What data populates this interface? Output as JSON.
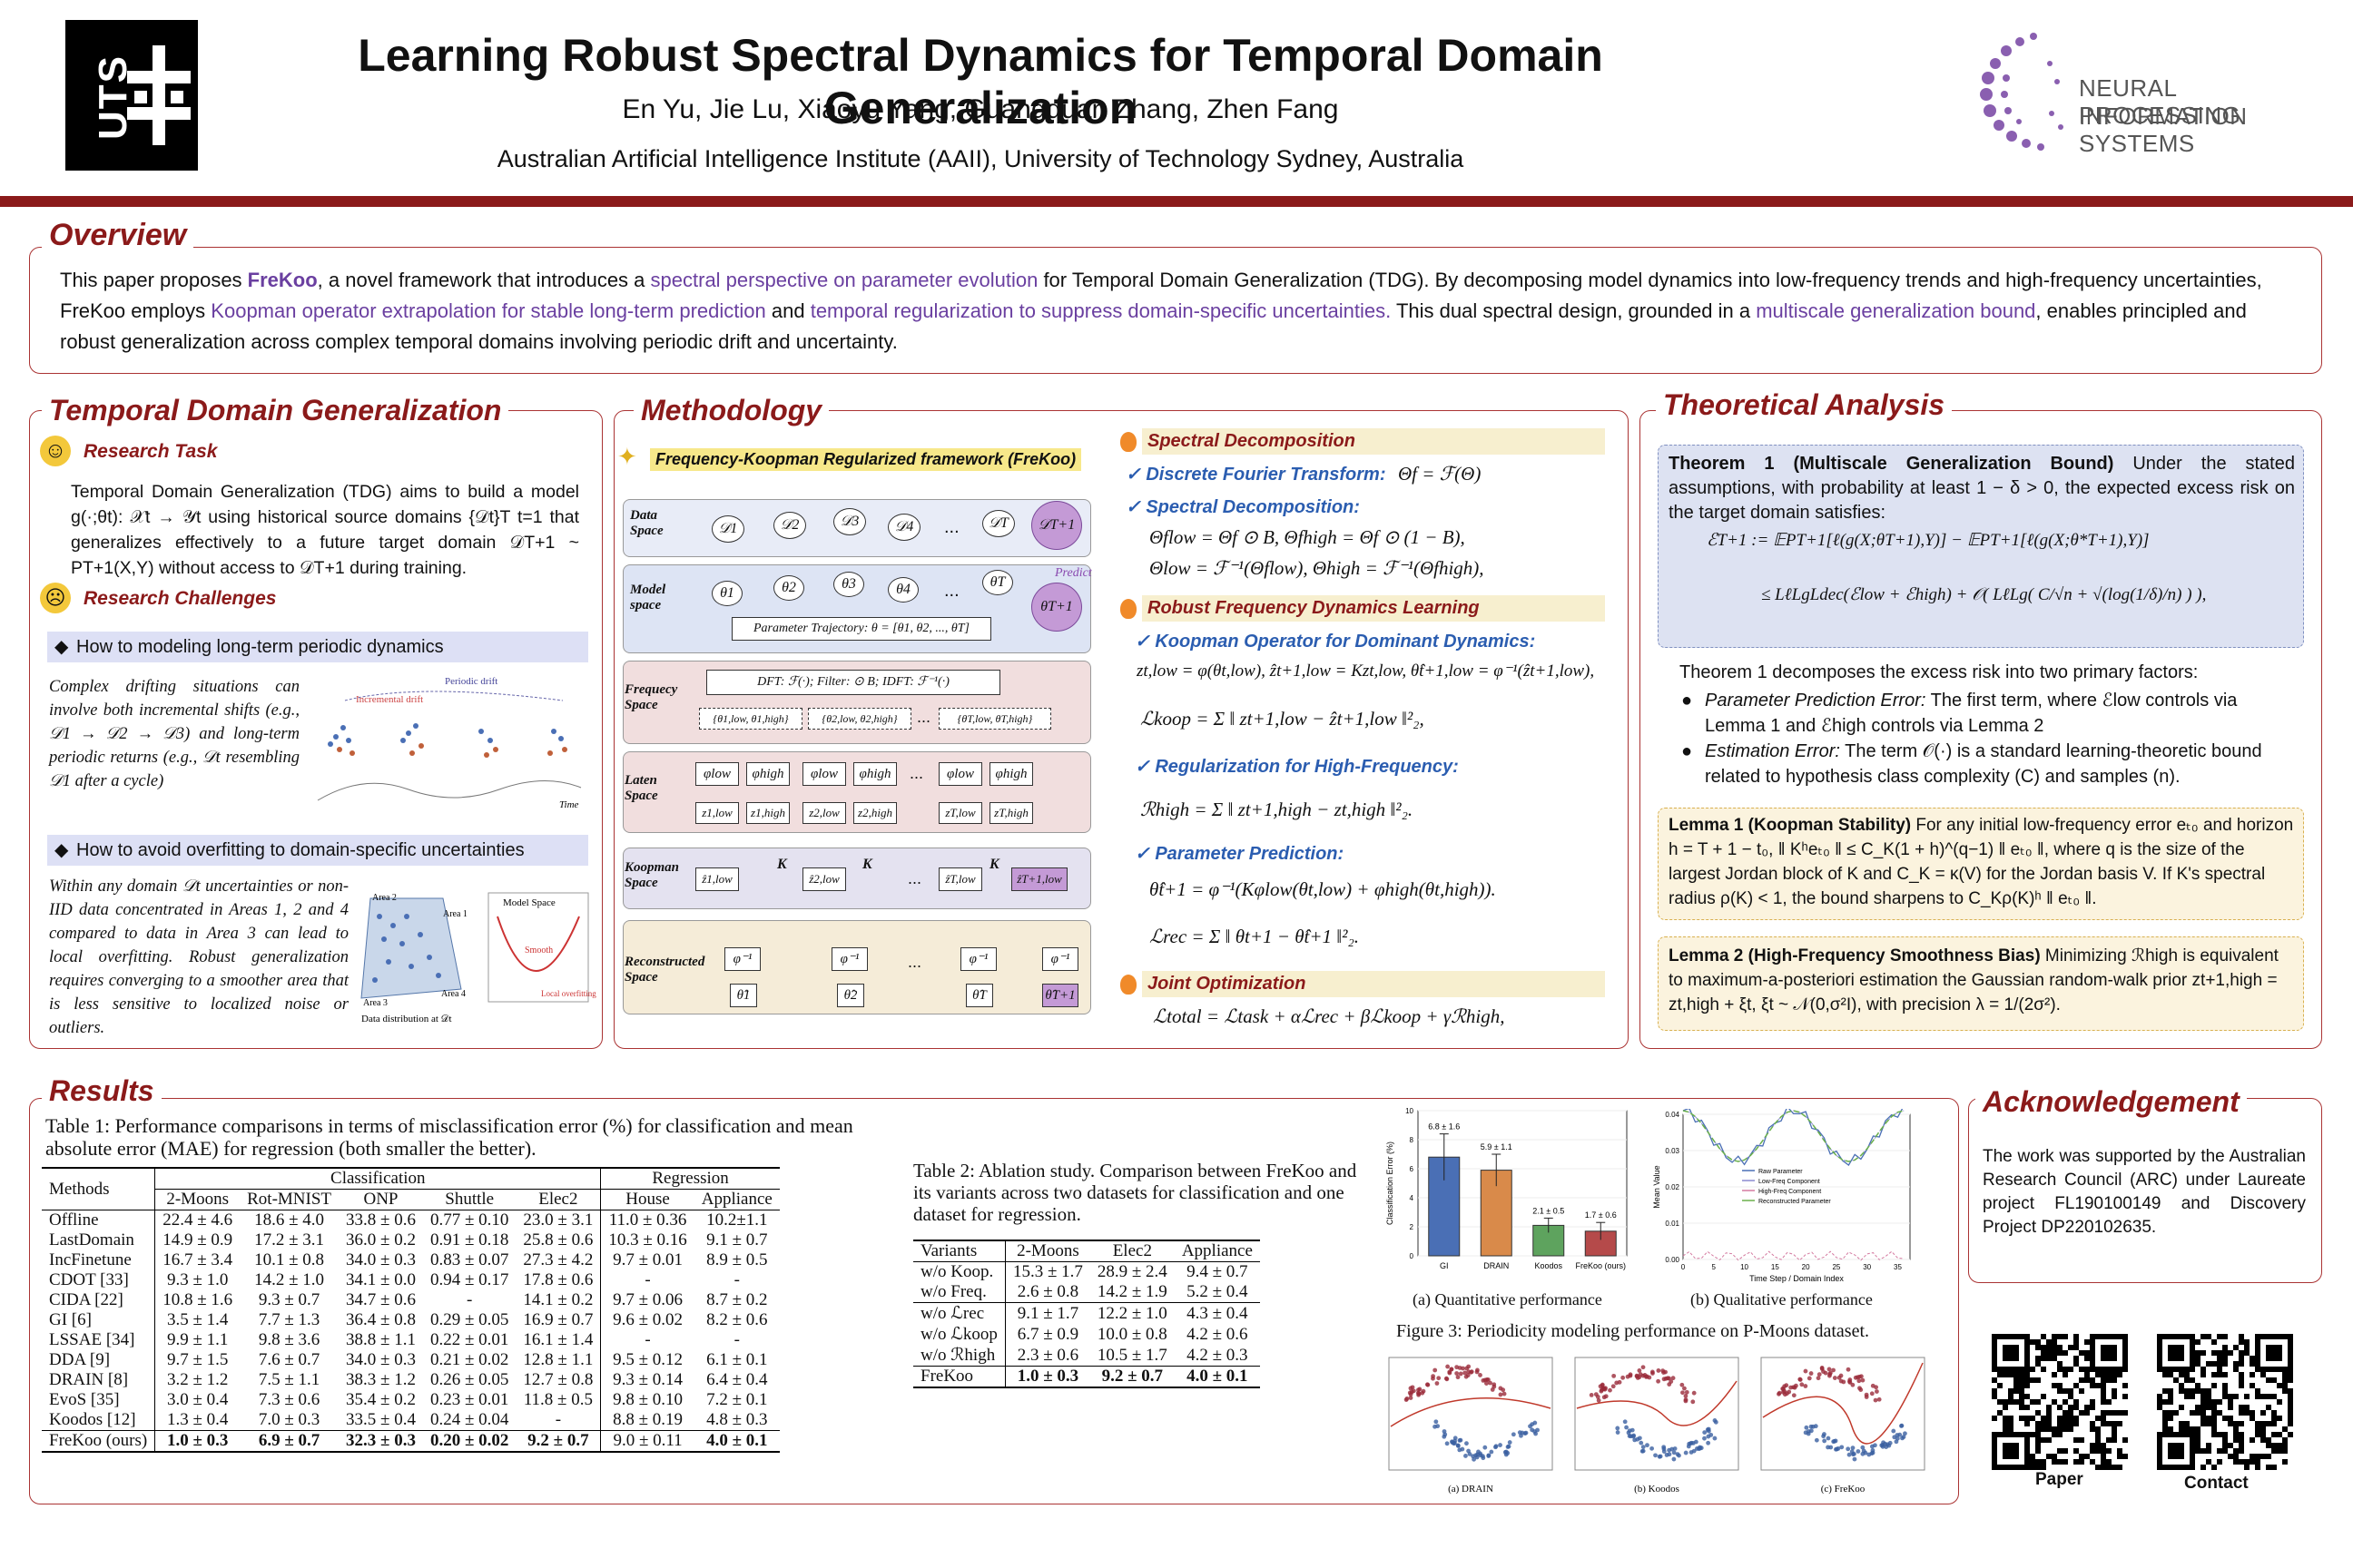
{
  "header": {
    "logo_left": "UTS",
    "title": "Learning Robust Spectral Dynamics for Temporal Domain Generalization",
    "authors": "En Yu, Jie Lu, Xiaoyu Yang, Guangquan Zhang, Zhen Fang",
    "affiliation": "Australian Artificial Intelligence Institute (AAII), University of Technology Sydney, Australia",
    "logo_right_line1": "NEURAL INFORMATION",
    "logo_right_line2": "PROCESSING SYSTEMS"
  },
  "overview": {
    "title": "Overview",
    "p1": "This paper proposes ",
    "freekoo": "FreKoo",
    "p2": ", a novel framework that introduces a ",
    "hl1": "spectral perspective on parameter evolution",
    "p3": " for Temporal Domain Generalization (TDG). By decomposing model dynamics into low-frequency trends and high-frequency uncertainties, FreKoo employs ",
    "hl2": "Koopman operator extrapolation for stable long-term prediction",
    "p4": " and ",
    "hl3": "temporal regularization to suppress domain-specific uncertainties.",
    "p5": " This dual spectral design, grounded in a ",
    "hl4": "multiscale generalization bound",
    "p6": ", enables principled and robust generalization across complex temporal domains involving periodic drift and uncertainty."
  },
  "tdg": {
    "title": "Temporal Domain Generalization",
    "task_heading": "Research Task",
    "task_text": "Temporal Domain Generalization (TDG) aims to build a model g(·;θt): 𝒳t → 𝒴t using historical source domains {𝒟t}T t=1 that generalizes effectively to a future target domain 𝒟T+1 ~ PT+1(X,Y) without access to 𝒟T+1 during training.",
    "challenges_heading": "Research Challenges",
    "c1_title": "How to modeling long-term periodic dynamics",
    "c1_text": "Complex drifting situations can involve both incremental shifts (e.g., 𝒟1 → 𝒟2 → 𝒟3) and long-term periodic returns (e.g., 𝒟t resembling 𝒟1 after a cycle)",
    "c1_fig_label1": "Incremental drift",
    "c1_fig_label2": "Periodic drift",
    "c1_fig_time": "Time",
    "c2_title": "How to avoid overfitting to domain-specific uncertainties",
    "c2_text": "Within any domain 𝒟t uncertainties or non-IID data concentrated in Areas 1, 2 and 4 compared to data in Area 3 can lead to local overfitting. Robust generalization requires converging to a smoother area that is less sensitive to localized noise or outliers.",
    "c2_fig_area1": "Area 1",
    "c2_fig_area2": "Area 2",
    "c2_fig_area3": "Area 3",
    "c2_fig_area4": "Area 4",
    "c2_fig_model": "Model Space",
    "c2_fig_smooth": "Smooth",
    "c2_fig_local": "Local overfitting",
    "c2_fig_dist": "Data distribution at 𝒟t"
  },
  "method": {
    "title": "Methodology",
    "fig_caption": "Frequency-Koopman Regularized framework (FreKoo)",
    "rows": [
      "Data Space",
      "Model space",
      "Frequecy Space",
      "Laten Space",
      "Koopman Space",
      "Reconstructed Space"
    ],
    "param_traj": "Parameter Trajectory: θ = [θ1, θ2, ..., θT]",
    "dft": "DFT: ℱ(·);  Filter: ⊙ B;  IDFT: ℱ⁻¹(·)",
    "predict": "Predict",
    "freq_boxes": [
      "{θ1,low, θ1,high}",
      "{θ2,low, θ2,high}",
      "{θT,low, θT,high}"
    ],
    "data_nodes": [
      "𝒟1",
      "𝒟2",
      "𝒟3",
      "𝒟4",
      "𝒟T",
      "𝒟T+1"
    ],
    "model_nodes": [
      "θ1",
      "θ2",
      "θ3",
      "θ4",
      "θT",
      "θT+1"
    ],
    "latent_phi": [
      "φlow",
      "φhigh",
      "φlow",
      "φhigh",
      "φlow",
      "φhigh"
    ],
    "latent_z": [
      "z1,low",
      "z1,high",
      "z2,low",
      "z2,high",
      "zT,low",
      "zT,high"
    ],
    "koop_z": [
      "ẑ1,low",
      "ẑ2,low",
      "ẑT,low",
      "ẑT+1,low"
    ],
    "koop_k": "K",
    "recon_phi": "φ⁻¹",
    "recon_theta": [
      "θ̂1",
      "θ̂2",
      "θ̂T",
      "θ̂T+1"
    ],
    "dots": "...",
    "s1": "Spectral Decomposition",
    "s1a": "Discrete Fourier Transform:",
    "s1a_eq": "Θf = ℱ(Θ)",
    "s1b": "Spectral Decomposition:",
    "s1b_eq1": "Θflow = Θf ⊙ B,    Θfhigh = Θf ⊙ (1 − B),",
    "s1b_eq2": "Θlow = ℱ⁻¹(Θflow),    Θhigh = ℱ⁻¹(Θfhigh),",
    "s2": "Robust Frequency Dynamics Learning",
    "s2a": "Koopman Operator for Dominant Dynamics:",
    "s2a_eq1": "zt,low = φ(θt,low), ẑt+1,low = Kzt,low, θ̂t+1,low = φ⁻¹(ẑt+1,low),",
    "s2a_eq2": "ℒkoop = Σ ‖ zt+1,low − ẑt+1,low ‖²₂,",
    "s2b": "Regularization for High-Frequency:",
    "s2b_eq": "ℛhigh = Σ ‖ zt+1,high − zt,high ‖²₂.",
    "s2c": "Parameter Prediction:",
    "s2c_eq1": "θ̂t+1 = φ⁻¹(Kφlow(θt,low) + φhigh(θt,high)).",
    "s2c_eq2": "ℒrec = Σ ‖ θt+1 − θ̂t+1 ‖²₂.",
    "s3": "Joint Optimization",
    "s3_eq": "ℒtotal = ℒtask + αℒrec + βℒkoop + γℛhigh,"
  },
  "theory": {
    "title": "Theoretical Analysis",
    "thm_head": "Theorem 1 (Multiscale Generalization Bound)",
    "thm_text": " Under the stated assumptions, with probability at least 1 − δ > 0, the expected excess risk on the target domain satisfies:",
    "thm_eq1": "ℰT+1   := 𝔼PT+1[ℓ(g(X;θT+1),Y)] − 𝔼PT+1[ℓ(g(X;θ*T+1),Y)]",
    "thm_eq2": "≤ LℓLgLdec(ℰlow + ℰhigh) + 𝒪( LℓLg( C/√n + √(log(1/δ)/n) ) ),",
    "decomp": "Theorem 1 decomposes the excess risk into two primary factors:",
    "b1_head": "Parameter Prediction Error:",
    "b1_text": " The first term, where ℰlow controls via Lemma 1 and ℰhigh controls via Lemma 2",
    "b2_head": "Estimation Error:",
    "b2_text": " The term 𝒪(·) is a standard learning-theoretic bound related to hypothesis class complexity (C) and samples (n).",
    "lem1_head": "Lemma 1 (Koopman Stability)",
    "lem1_text": " For any initial low-frequency error eₜ₀ and horizon h = T + 1 − t₀, ‖ Kʰeₜ₀ ‖ ≤ C_K(1 + h)^(q−1) ‖ eₜ₀ ‖, where q is the size of the largest Jordan block of K and C_K = κ(V) for the Jordan basis V. If K's spectral radius ρ(K) < 1, the bound sharpens to C_Kρ(K)ʰ ‖ eₜ₀ ‖.",
    "lem2_head": "Lemma 2 (High-Frequency Smoothness Bias)",
    "lem2_text": " Minimizing ℛhigh is equivalent to maximum-a-posteriori estimation the Gaussian random-walk prior zt+1,high = zt,high + ξt, ξt ~ 𝒩(0,σ²I), with precision λ = 1/(2σ²)."
  },
  "results": {
    "title": "Results",
    "t1_caption": "Table 1: Performance comparisons in terms of misclassification error (%) for classification and mean absolute error (MAE) for regression (both smaller the better).",
    "t1_group_cls": "Classification",
    "t1_group_reg": "Regression",
    "t1_methods_col": "Methods",
    "t1_cols": [
      "2-Moons",
      "Rot-MNIST",
      "ONP",
      "Shuttle",
      "Elec2",
      "House",
      "Appliance"
    ],
    "t1_rows": [
      [
        "Offline",
        "22.4 ± 4.6",
        "18.6 ± 4.0",
        "33.8 ± 0.6",
        "0.77 ± 0.10",
        "23.0 ± 3.1",
        "11.0 ± 0.36",
        "10.2±1.1"
      ],
      [
        "LastDomain",
        "14.9 ± 0.9",
        "17.2 ± 3.1",
        "36.0 ± 0.2",
        "0.91 ± 0.18",
        "25.8 ± 0.6",
        "10.3 ± 0.16",
        "9.1 ± 0.7"
      ],
      [
        "IncFinetune",
        "16.7 ± 3.4",
        "10.1 ± 0.8",
        "34.0 ± 0.3",
        "0.83 ± 0.07",
        "27.3 ± 4.2",
        "9.7 ± 0.01",
        "8.9 ± 0.5"
      ],
      [
        "CDOT [33]",
        "9.3 ± 1.0",
        "14.2 ± 1.0",
        "34.1 ± 0.0",
        "0.94 ± 0.17",
        "17.8 ± 0.6",
        "-",
        "-"
      ],
      [
        "CIDA [22]",
        "10.8 ± 1.6",
        "9.3 ± 0.7",
        "34.7 ± 0.6",
        "-",
        "14.1 ± 0.2",
        "9.7 ± 0.06",
        "8.7 ± 0.2"
      ],
      [
        "GI [6]",
        "3.5 ± 1.4",
        "7.7 ± 1.3",
        "36.4 ± 0.8",
        "0.29 ± 0.05",
        "16.9 ± 0.7",
        "9.6 ± 0.02",
        "8.2 ± 0.6"
      ],
      [
        "LSSAE [34]",
        "9.9 ± 1.1",
        "9.8 ± 3.6",
        "38.8 ± 1.1",
        "0.22 ± 0.01",
        "16.1 ± 1.4",
        "-",
        "-"
      ],
      [
        "DDA [9]",
        "9.7 ± 1.5",
        "7.6 ± 0.7",
        "34.0 ± 0.3",
        "0.21 ± 0.02",
        "12.8 ± 1.1",
        "9.5 ± 0.12",
        "6.1 ± 0.1"
      ],
      [
        "DRAIN [8]",
        "3.2 ± 1.2",
        "7.5 ± 1.1",
        "38.3 ± 1.2",
        "0.26 ± 0.05",
        "12.7 ± 0.8",
        "9.3 ± 0.14",
        "6.4 ± 0.4"
      ],
      [
        "EvoS [35]",
        "3.0 ± 0.4",
        "7.3 ± 0.6",
        "35.4 ± 0.2",
        "0.23 ± 0.01",
        "11.8 ± 0.5",
        "9.8 ± 0.10",
        "7.2 ± 0.1"
      ],
      [
        "Koodos [12]",
        "1.3 ± 0.4",
        "7.0 ± 0.3",
        "33.5 ± 0.4",
        "0.24 ± 0.04",
        "-",
        "8.8 ± 0.19",
        "4.8 ± 0.3"
      ]
    ],
    "t1_ours": [
      "FreKoo (ours)",
      "1.0 ± 0.3",
      "6.9 ± 0.7",
      "32.3 ± 0.3",
      "0.20 ± 0.02",
      "9.2 ± 0.7",
      "9.0 ± 0.11",
      "4.0 ± 0.1"
    ],
    "t2_caption": "Table 2: Ablation study. Comparison between FreKoo and its variants across two datasets for classification and one dataset for regression.",
    "t2_cols": [
      "Variants",
      "2-Moons",
      "Elec2",
      "Appliance"
    ],
    "t2_rows_a": [
      [
        "w/o Koop.",
        "15.3 ± 1.7",
        "28.9 ± 2.4",
        "9.4 ± 0.7"
      ],
      [
        "w/o Freq.",
        "2.6 ± 0.8",
        "14.2 ± 1.9",
        "5.2 ± 0.4"
      ]
    ],
    "t2_rows_b": [
      [
        "w/o ℒrec",
        "9.1 ± 1.7",
        "12.2 ± 1.0",
        "4.3 ± 0.4"
      ],
      [
        "w/o ℒkoop",
        "6.7 ± 0.9",
        "10.0 ± 0.8",
        "4.2 ± 0.6"
      ],
      [
        "w/o ℛhigh",
        "2.3 ± 0.6",
        "10.5 ± 1.7",
        "4.2 ± 0.3"
      ]
    ],
    "t2_ours": [
      "FreKoo",
      "1.0 ± 0.3",
      "9.2 ± 0.7",
      "4.0 ± 0.1"
    ],
    "fig3_caption": "Figure 3: Periodicity modeling performance on P-Moons dataset.",
    "fig3a_caption": "(a) Quantitative performance",
    "fig3b_caption": "(b) Qualitative performance",
    "fig3_scatter_captions": [
      "(a) DRAIN",
      "(b) Koodos",
      "(c) FreKoo"
    ]
  },
  "chart_data": [
    {
      "type": "bar",
      "title": "",
      "ylabel": "Classification Error (%)",
      "categories": [
        "GI",
        "DRAIN",
        "Koodos",
        "FreKoo (ours)"
      ],
      "values": [
        6.8,
        5.9,
        2.1,
        1.7
      ],
      "errors": [
        1.6,
        1.1,
        0.5,
        0.6
      ],
      "labels": [
        "6.8 ± 1.6",
        "5.9 ± 1.1",
        "2.1 ± 0.5",
        "1.7 ± 0.6"
      ],
      "colors": [
        "#4a6fb5",
        "#d98a4a",
        "#5ea35e",
        "#b54a4a"
      ],
      "ylim": [
        0,
        10
      ],
      "yticks": [
        0,
        2,
        4,
        6,
        8,
        10
      ]
    },
    {
      "type": "line",
      "title": "",
      "xlabel": "Time Step / Domain Index",
      "ylabel": "Mean Value",
      "xlim": [
        0,
        37
      ],
      "ylim": [
        0,
        0.04
      ],
      "xticks": [
        0,
        5,
        10,
        15,
        20,
        25,
        30,
        35
      ],
      "yticks": [
        0.0,
        0.01,
        0.02,
        0.03,
        0.04
      ],
      "legend_position": "center",
      "series": [
        {
          "name": "Raw Parameter",
          "color": "#4a6fb5"
        },
        {
          "name": "Low-Freq Component",
          "color": "#8a8ad0"
        },
        {
          "name": "High-Freq Component",
          "color": "#d47aa0"
        },
        {
          "name": "Reconstructed Parameter",
          "color": "#6ab04a"
        }
      ]
    }
  ],
  "ack": {
    "title": "Acknowledgement",
    "text": "The work was supported by the Australian Research Council (ARC) under Laureate project FL190100149 and Discovery Project DP220102635."
  },
  "qr": {
    "paper": "Paper",
    "contact": "Contact"
  }
}
